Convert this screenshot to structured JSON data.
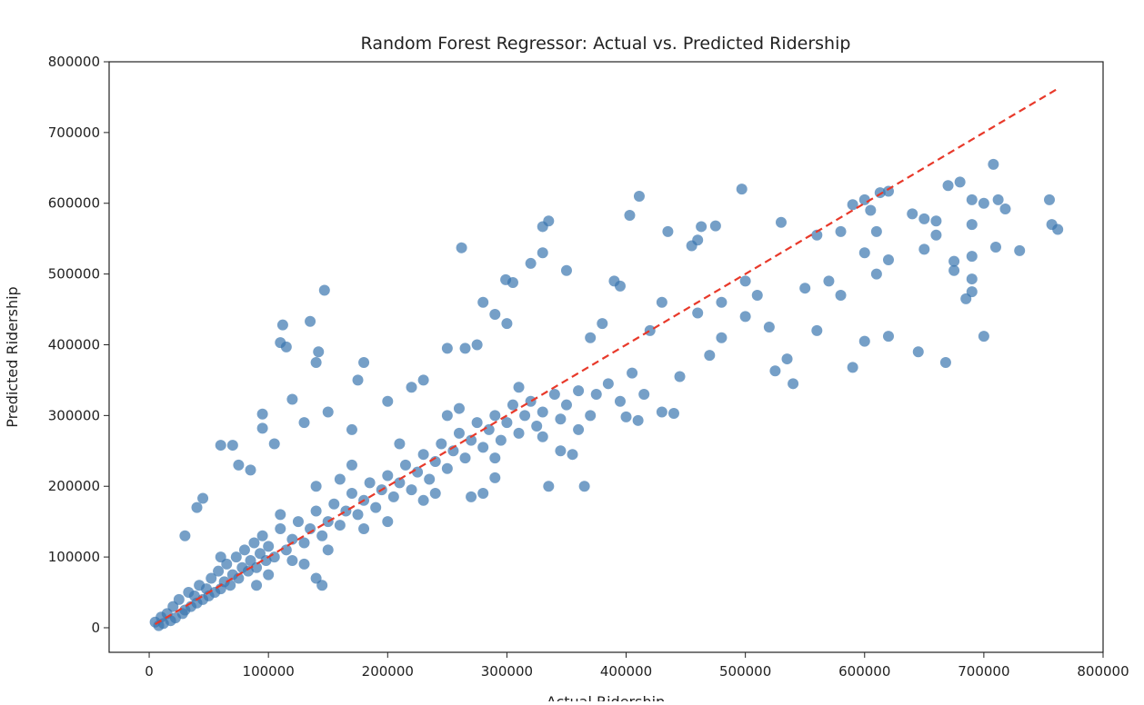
{
  "chart_data": {
    "type": "scatter",
    "title": "Random Forest Regressor: Actual vs. Predicted Ridership",
    "xlabel": "Actual Ridership",
    "ylabel": "Predicted Ridership",
    "xlim": [
      -33600,
      800000
    ],
    "ylim": [
      -34700,
      800000
    ],
    "xticks": [
      0,
      100000,
      200000,
      300000,
      400000,
      500000,
      600000,
      700000,
      800000
    ],
    "yticks": [
      0,
      100000,
      200000,
      300000,
      400000,
      500000,
      600000,
      700000,
      800000
    ],
    "grid": false,
    "point_color": "#3a76af",
    "point_alpha": 0.7,
    "reference_line": {
      "from": [
        5000,
        5000
      ],
      "to": [
        763000,
        763000
      ],
      "color": "#e8392a",
      "style": "dashed"
    },
    "points": [
      [
        411000,
        610000
      ],
      [
        403000,
        583000
      ],
      [
        497000,
        620000
      ],
      [
        262000,
        537000
      ],
      [
        330000,
        567000
      ],
      [
        335000,
        575000
      ],
      [
        147000,
        477000
      ],
      [
        112000,
        428000
      ],
      [
        135000,
        433000
      ],
      [
        110000,
        403000
      ],
      [
        115000,
        397000
      ],
      [
        142000,
        390000
      ],
      [
        140000,
        375000
      ],
      [
        120000,
        323000
      ],
      [
        680000,
        630000
      ],
      [
        708000,
        655000
      ],
      [
        670000,
        625000
      ],
      [
        613000,
        615000
      ],
      [
        620000,
        617000
      ],
      [
        530000,
        573000
      ],
      [
        435000,
        560000
      ],
      [
        463000,
        567000
      ],
      [
        475000,
        568000
      ],
      [
        460000,
        548000
      ],
      [
        455000,
        540000
      ],
      [
        390000,
        490000
      ],
      [
        395000,
        483000
      ],
      [
        299000,
        492000
      ],
      [
        305000,
        488000
      ],
      [
        350000,
        505000
      ],
      [
        320000,
        515000
      ],
      [
        330000,
        530000
      ],
      [
        280000,
        460000
      ],
      [
        290000,
        443000
      ],
      [
        300000,
        430000
      ],
      [
        560000,
        555000
      ],
      [
        580000,
        560000
      ],
      [
        590000,
        598000
      ],
      [
        600000,
        605000
      ],
      [
        605000,
        590000
      ],
      [
        610000,
        560000
      ],
      [
        640000,
        585000
      ],
      [
        650000,
        578000
      ],
      [
        660000,
        575000
      ],
      [
        690000,
        605000
      ],
      [
        700000,
        600000
      ],
      [
        712000,
        605000
      ],
      [
        718000,
        592000
      ],
      [
        755000,
        605000
      ],
      [
        757000,
        570000
      ],
      [
        762000,
        563000
      ],
      [
        730000,
        533000
      ],
      [
        710000,
        538000
      ],
      [
        690000,
        570000
      ],
      [
        690000,
        525000
      ],
      [
        675000,
        505000
      ],
      [
        675000,
        518000
      ],
      [
        650000,
        535000
      ],
      [
        660000,
        555000
      ],
      [
        685000,
        465000
      ],
      [
        690000,
        475000
      ],
      [
        690000,
        493000
      ],
      [
        700000,
        412000
      ],
      [
        668000,
        375000
      ],
      [
        645000,
        390000
      ],
      [
        620000,
        412000
      ],
      [
        600000,
        405000
      ],
      [
        590000,
        368000
      ],
      [
        540000,
        345000
      ],
      [
        525000,
        363000
      ],
      [
        535000,
        380000
      ],
      [
        560000,
        420000
      ],
      [
        520000,
        425000
      ],
      [
        500000,
        440000
      ],
      [
        480000,
        410000
      ],
      [
        470000,
        385000
      ],
      [
        445000,
        355000
      ],
      [
        430000,
        305000
      ],
      [
        440000,
        303000
      ],
      [
        400000,
        298000
      ],
      [
        410000,
        293000
      ],
      [
        365000,
        200000
      ],
      [
        335000,
        200000
      ],
      [
        345000,
        250000
      ],
      [
        355000,
        245000
      ],
      [
        290000,
        212000
      ],
      [
        280000,
        190000
      ],
      [
        270000,
        185000
      ],
      [
        145000,
        60000
      ],
      [
        140000,
        70000
      ],
      [
        130000,
        90000
      ],
      [
        60000,
        258000
      ],
      [
        70000,
        258000
      ],
      [
        105000,
        260000
      ],
      [
        85000,
        223000
      ],
      [
        75000,
        230000
      ],
      [
        95000,
        302000
      ],
      [
        95000,
        282000
      ],
      [
        45000,
        183000
      ],
      [
        40000,
        170000
      ],
      [
        30000,
        130000
      ],
      [
        180000,
        375000
      ],
      [
        175000,
        350000
      ],
      [
        230000,
        350000
      ],
      [
        220000,
        340000
      ],
      [
        250000,
        395000
      ],
      [
        265000,
        395000
      ],
      [
        275000,
        400000
      ],
      [
        200000,
        320000
      ],
      [
        170000,
        280000
      ],
      [
        130000,
        290000
      ],
      [
        150000,
        305000
      ],
      [
        500000,
        490000
      ],
      [
        510000,
        470000
      ],
      [
        550000,
        480000
      ],
      [
        570000,
        490000
      ],
      [
        580000,
        470000
      ],
      [
        610000,
        500000
      ],
      [
        600000,
        530000
      ],
      [
        620000,
        520000
      ],
      [
        480000,
        460000
      ],
      [
        460000,
        445000
      ],
      [
        420000,
        420000
      ],
      [
        430000,
        460000
      ],
      [
        380000,
        430000
      ],
      [
        370000,
        410000
      ],
      [
        5000,
        8000
      ],
      [
        8000,
        3000
      ],
      [
        10000,
        15000
      ],
      [
        12000,
        6000
      ],
      [
        15000,
        20000
      ],
      [
        18000,
        10000
      ],
      [
        20000,
        30000
      ],
      [
        22000,
        14000
      ],
      [
        25000,
        40000
      ],
      [
        28000,
        20000
      ],
      [
        30000,
        25000
      ],
      [
        33000,
        50000
      ],
      [
        35000,
        30000
      ],
      [
        38000,
        45000
      ],
      [
        40000,
        35000
      ],
      [
        42000,
        60000
      ],
      [
        45000,
        40000
      ],
      [
        48000,
        55000
      ],
      [
        50000,
        45000
      ],
      [
        52000,
        70000
      ],
      [
        55000,
        50000
      ],
      [
        58000,
        80000
      ],
      [
        60000,
        55000
      ],
      [
        63000,
        65000
      ],
      [
        65000,
        90000
      ],
      [
        68000,
        60000
      ],
      [
        70000,
        75000
      ],
      [
        73000,
        100000
      ],
      [
        75000,
        70000
      ],
      [
        78000,
        85000
      ],
      [
        80000,
        110000
      ],
      [
        83000,
        80000
      ],
      [
        85000,
        95000
      ],
      [
        88000,
        120000
      ],
      [
        90000,
        85000
      ],
      [
        93000,
        105000
      ],
      [
        95000,
        130000
      ],
      [
        98000,
        95000
      ],
      [
        100000,
        115000
      ],
      [
        105000,
        100000
      ],
      [
        110000,
        140000
      ],
      [
        115000,
        110000
      ],
      [
        120000,
        125000
      ],
      [
        125000,
        150000
      ],
      [
        130000,
        120000
      ],
      [
        135000,
        140000
      ],
      [
        140000,
        165000
      ],
      [
        145000,
        130000
      ],
      [
        150000,
        150000
      ],
      [
        155000,
        175000
      ],
      [
        160000,
        145000
      ],
      [
        165000,
        165000
      ],
      [
        170000,
        190000
      ],
      [
        175000,
        160000
      ],
      [
        180000,
        180000
      ],
      [
        185000,
        205000
      ],
      [
        190000,
        170000
      ],
      [
        195000,
        195000
      ],
      [
        200000,
        215000
      ],
      [
        205000,
        185000
      ],
      [
        210000,
        205000
      ],
      [
        215000,
        230000
      ],
      [
        220000,
        195000
      ],
      [
        225000,
        220000
      ],
      [
        230000,
        245000
      ],
      [
        235000,
        210000
      ],
      [
        240000,
        235000
      ],
      [
        245000,
        260000
      ],
      [
        250000,
        225000
      ],
      [
        255000,
        250000
      ],
      [
        260000,
        275000
      ],
      [
        265000,
        240000
      ],
      [
        270000,
        265000
      ],
      [
        275000,
        290000
      ],
      [
        280000,
        255000
      ],
      [
        285000,
        280000
      ],
      [
        290000,
        300000
      ],
      [
        295000,
        265000
      ],
      [
        300000,
        290000
      ],
      [
        305000,
        315000
      ],
      [
        310000,
        275000
      ],
      [
        315000,
        300000
      ],
      [
        320000,
        320000
      ],
      [
        325000,
        285000
      ],
      [
        330000,
        305000
      ],
      [
        340000,
        330000
      ],
      [
        345000,
        295000
      ],
      [
        350000,
        315000
      ],
      [
        360000,
        335000
      ],
      [
        370000,
        300000
      ],
      [
        375000,
        330000
      ],
      [
        385000,
        345000
      ],
      [
        395000,
        320000
      ],
      [
        405000,
        360000
      ],
      [
        415000,
        330000
      ],
      [
        360000,
        280000
      ],
      [
        240000,
        190000
      ],
      [
        180000,
        140000
      ],
      [
        120000,
        95000
      ],
      [
        110000,
        160000
      ],
      [
        160000,
        210000
      ],
      [
        210000,
        260000
      ],
      [
        260000,
        310000
      ],
      [
        310000,
        340000
      ],
      [
        200000,
        150000
      ],
      [
        150000,
        110000
      ],
      [
        100000,
        75000
      ],
      [
        60000,
        100000
      ],
      [
        90000,
        60000
      ],
      [
        250000,
        300000
      ],
      [
        290000,
        240000
      ],
      [
        330000,
        270000
      ],
      [
        170000,
        230000
      ],
      [
        140000,
        200000
      ],
      [
        230000,
        180000
      ]
    ]
  }
}
